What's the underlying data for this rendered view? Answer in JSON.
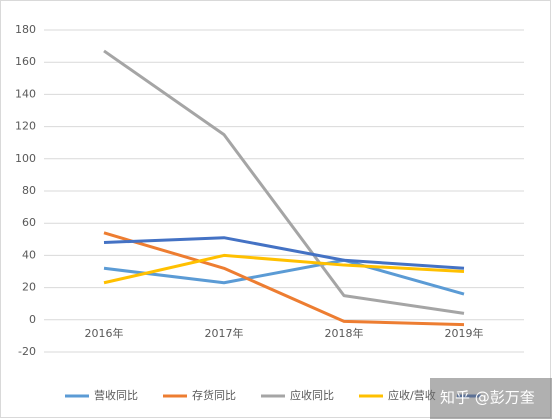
{
  "chart_data": {
    "type": "line",
    "categories": [
      "2016年",
      "2017年",
      "2018年",
      "2019年"
    ],
    "series": [
      {
        "name": "营收同比",
        "color": "#5b9bd5",
        "values": [
          32,
          23,
          37,
          16
        ]
      },
      {
        "name": "存货同比",
        "color": "#ed7d31",
        "values": [
          54,
          32,
          -1,
          -3
        ]
      },
      {
        "name": "应收同比",
        "color": "#a5a5a5",
        "values": [
          167,
          115,
          15,
          4
        ]
      },
      {
        "name": "应收/营收",
        "color": "#ffc000",
        "values": [
          23,
          40,
          34,
          30
        ]
      },
      {
        "name": null,
        "color": "#4472c4",
        "values": [
          48,
          51,
          37,
          32
        ]
      }
    ],
    "ylim": [
      -20,
      180
    ],
    "yticks": [
      -20,
      0,
      20,
      40,
      60,
      80,
      100,
      120,
      140,
      160,
      180
    ],
    "grid": true,
    "legend": "bottom",
    "watermark": "知乎 @彭万奎"
  }
}
